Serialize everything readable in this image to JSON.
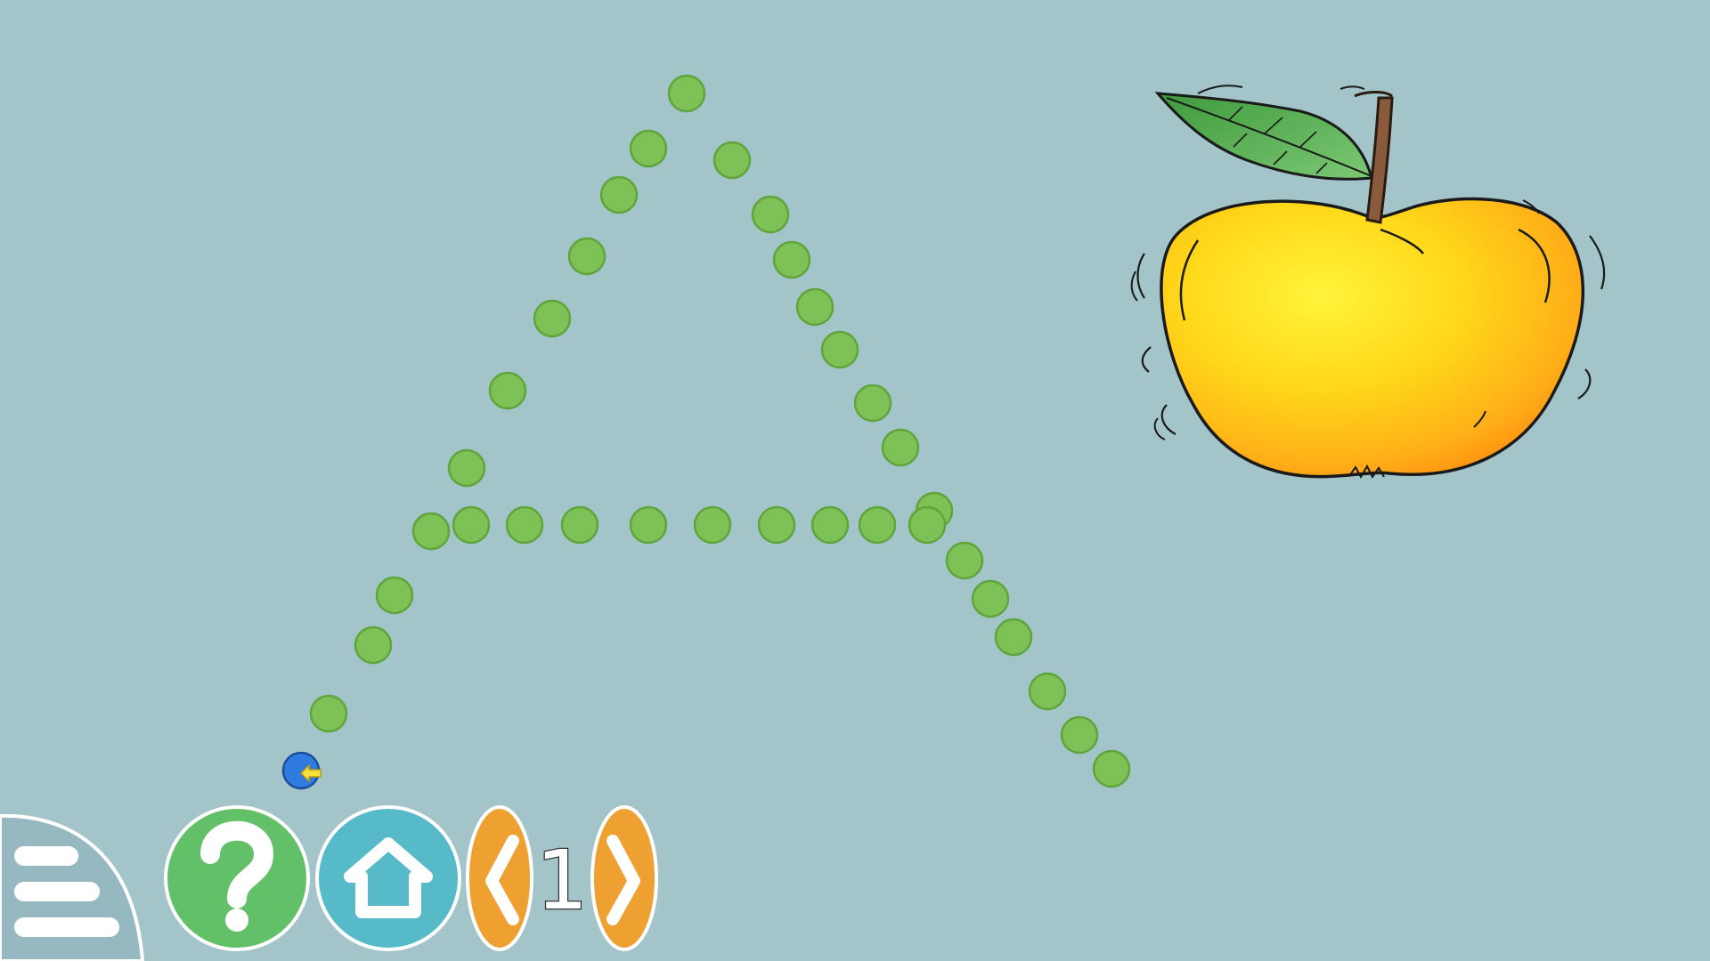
{
  "game": {
    "activity": "letter-tracing",
    "letter": "A",
    "picture_icon": "apple-icon",
    "cursor_icon": "pointer-arrow-icon"
  },
  "controls": {
    "menu_icon": "hamburger-menu-icon",
    "help_icon": "question-mark-icon",
    "home_icon": "house-icon",
    "prev_icon": "chevron-left-icon",
    "next_icon": "chevron-right-icon",
    "page_number": "1"
  },
  "colors": {
    "background": "#a3c4c9",
    "dot_fill": "#7ec157",
    "start_dot": "#2f7be0",
    "help_button": "#62c069",
    "home_button": "#56bac8",
    "nav_button": "#eea030",
    "menu_panel": "#96b9c1"
  }
}
